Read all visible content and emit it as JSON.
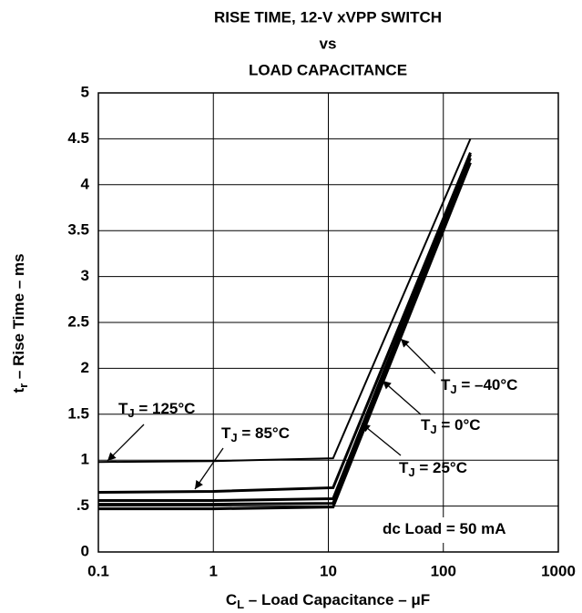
{
  "chart_data": {
    "type": "line",
    "title": [
      "RISE TIME, 12-V xVPP SWITCH",
      "vs",
      "LOAD CAPACITANCE"
    ],
    "x_label": {
      "main": "C",
      "sub": "L",
      "rest": " – Load Capacitance – μF"
    },
    "y_label": {
      "main": "t",
      "sub": "r",
      "rest": " – Rise Time – ms"
    },
    "x": [
      0.1,
      1,
      11,
      172
    ],
    "series": [
      {
        "name": "125°C",
        "color": "#000000",
        "values": [
          0.98,
          0.99,
          1.02,
          4.5
        ]
      },
      {
        "name": "85°C",
        "color": "#000000",
        "values": [
          0.65,
          0.66,
          0.7,
          4.35
        ]
      },
      {
        "name": "25°C",
        "color": "#000000",
        "values": [
          0.56,
          0.56,
          0.58,
          4.33
        ]
      },
      {
        "name": "0°C",
        "color": "#000000",
        "values": [
          0.52,
          0.52,
          0.53,
          4.29
        ]
      },
      {
        "name": "-40°C",
        "color": "#000000",
        "values": [
          0.47,
          0.47,
          0.49,
          4.24
        ]
      }
    ],
    "annotations": [
      {
        "main": "T",
        "sub": "J",
        "rest": " = 125°C"
      },
      {
        "main": "T",
        "sub": "J",
        "rest": " = 85°C"
      },
      {
        "main": "T",
        "sub": "J",
        "rest": " = –40°C"
      },
      {
        "main": "T",
        "sub": "J",
        "rest": " = 0°C"
      },
      {
        "main": "T",
        "sub": "J",
        "rest": " = 25°C"
      },
      {
        "main": "dc Load = 50 mA"
      }
    ],
    "xscale": "log",
    "xlim": [
      0.1,
      1000
    ],
    "xticks": [
      0.1,
      1,
      10,
      100,
      1000
    ],
    "ylim": [
      0,
      5
    ],
    "yticks": [
      0,
      {
        "value": 0.5,
        "label": ".5"
      },
      1,
      1.5,
      2,
      2.5,
      3,
      3.5,
      4,
      4.5,
      5
    ],
    "grid": true
  }
}
